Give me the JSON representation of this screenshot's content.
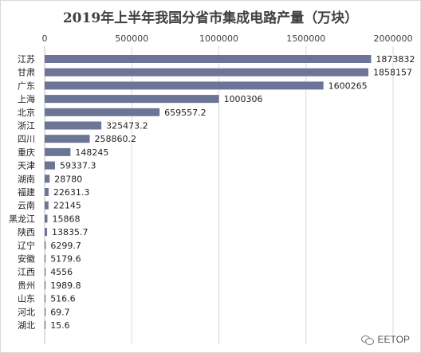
{
  "chart_data": {
    "type": "bar",
    "orientation": "horizontal",
    "title": "2019年上半年我国分省市集成电路产量（万块）",
    "xlabel": "",
    "ylabel": "",
    "xlim": [
      0,
      2000000
    ],
    "x_ticks": [
      "0",
      "500000",
      "1000000",
      "1500000",
      "2000000"
    ],
    "grid": true,
    "legend": "none",
    "bar_color": "#6b7595",
    "categories": [
      "江苏",
      "甘肃",
      "广东",
      "上海",
      "北京",
      "浙江",
      "四川",
      "重庆",
      "天津",
      "湖南",
      "福建",
      "云南",
      "黑龙江",
      "陕西",
      "辽宁",
      "安徽",
      "江西",
      "贵州",
      "山东",
      "河北",
      "湖北"
    ],
    "values": [
      1873832,
      1858157,
      1600265,
      1000306,
      659557.2,
      325473.2,
      258860.2,
      148245,
      59337.3,
      28780,
      22631.3,
      22145,
      15868,
      13835.7,
      6299.7,
      5179.6,
      4556,
      1989.8,
      516.6,
      69.7,
      15.6
    ],
    "value_labels": [
      "1873832",
      "1858157",
      "1600265",
      "1000306",
      "659557.2",
      "325473.2",
      "258860.2",
      "148245",
      "59337.3",
      "28780",
      "22631.3",
      "22145",
      "15868",
      "13835.7",
      "6299.7",
      "5179.6",
      "4556",
      "1989.8",
      "516.6",
      "69.7",
      "15.6"
    ]
  },
  "watermark": {
    "icon": "wechat-icon",
    "text": "EETOP"
  }
}
